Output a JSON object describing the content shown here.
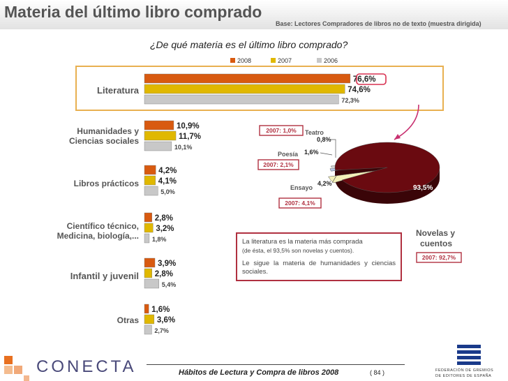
{
  "header": {
    "title": "Materia del último libro comprado",
    "base_note": "Base: Lectores Compradores de libros no de texto (muestra dirigida)"
  },
  "chart_data": [
    {
      "type": "bar",
      "orientation": "horizontal",
      "title": "¿De qué materia es el último libro comprado?",
      "categories": [
        "Literatura",
        "Humanidades y Ciencias sociales",
        "Libros prácticos",
        "Científico técnico, Medicina, biología,...",
        "Infantil y juvenil",
        "Otras"
      ],
      "category_lines": [
        [
          "Literatura"
        ],
        [
          "Humanidades y",
          "Ciencias sociales"
        ],
        [
          "Libros prácticos"
        ],
        [
          "Científico técnico,",
          "Medicina, biología,..."
        ],
        [
          "Infantil y juvenil"
        ],
        [
          "Otras"
        ]
      ],
      "series": [
        {
          "name": "2008",
          "color": "#d85a10",
          "values": [
            76.6,
            10.9,
            4.2,
            2.8,
            3.9,
            1.6
          ],
          "labels": [
            "76,6%",
            "10,9%",
            "4,2%",
            "2,8%",
            "3,9%",
            "1,6%"
          ]
        },
        {
          "name": "2007",
          "color": "#e0b800",
          "values": [
            74.6,
            11.7,
            4.1,
            3.2,
            2.8,
            3.6
          ],
          "labels": [
            "74,6%",
            "11,7%",
            "4,1%",
            "3,2%",
            "2,8%",
            "3,6%"
          ]
        },
        {
          "name": "2006",
          "color": "#c8c8c8",
          "values": [
            72.3,
            10.1,
            5.0,
            1.8,
            5.4,
            2.7
          ],
          "labels": [
            "72,3%",
            "10,1%",
            "5,0%",
            "1,8%",
            "5,4%",
            "2,7%"
          ]
        }
      ],
      "xlim": [
        0,
        100
      ],
      "legend": "top"
    },
    {
      "type": "pie",
      "subtitle": "Literatura",
      "slices": [
        {
          "label": "Novelas y cuentos",
          "value": 93.5,
          "value_label": "93,5%",
          "color": "#6a0a10",
          "note_2007": "2007: 92,7%"
        },
        {
          "label": "Ensayo",
          "value": 4.2,
          "value_label": "4,2%",
          "color": "#f4f0b8",
          "note_2007": "2007: 4,1%"
        },
        {
          "label": "Poesía",
          "value": 1.6,
          "value_label": "1,6%",
          "color": "#b8c8e8",
          "note_2007": "2007: 2,1%"
        },
        {
          "label": "Teatro",
          "value": 0.8,
          "value_label": "0,8%",
          "color": "#e8e8e8",
          "note_2007": "2007: 1,0%"
        }
      ]
    }
  ],
  "note": {
    "line1": "La literatura es la materia más comprada",
    "line1_sub": "(de ésta, el 93,5% son novelas y cuentos).",
    "line2": "Le sigue la materia de humanidades y ciencias sociales."
  },
  "footer": {
    "text": "Hábitos de Lectura y Compra de libros 2008",
    "page": "( 84 )",
    "logo_left": "CONECTA",
    "logo_right_line1": "FEDERACIÓN DE GREMIOS",
    "logo_right_line2": "DE EDITORES DE ESPAÑA"
  },
  "colors": {
    "accent": "#d85a10",
    "box_border": "#b03040",
    "literature_box": "#e8b050"
  }
}
